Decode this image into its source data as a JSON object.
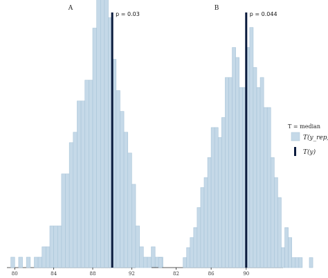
{
  "chart_data": [
    {
      "type": "bar",
      "panel_title": "A",
      "x_axis": {
        "min": 79.2,
        "max": 92.4,
        "ticks": [
          80,
          84,
          88,
          92
        ]
      },
      "y_axis": {
        "max": 24.5,
        "visible": false
      },
      "bin_width": 0.4,
      "bin_start": 79.6,
      "counts": [
        1,
        0,
        1,
        0,
        1,
        0,
        1,
        1,
        2,
        2,
        4,
        4,
        4,
        9,
        9,
        12,
        13,
        16,
        16,
        18,
        18,
        23,
        28,
        28,
        28,
        24,
        20,
        17,
        15,
        13,
        11,
        8,
        4,
        2,
        1,
        1,
        2,
        1,
        1
      ],
      "observed_value": 90.0,
      "p_value_label": "p = 0.03",
      "fill": "#c5d9e8",
      "edge": "#a8c4d8",
      "line_color": "#0a1b3d"
    },
    {
      "type": "bar",
      "panel_title": "B",
      "x_axis": {
        "min": 79.2,
        "max": 94.2,
        "ticks": [
          82,
          86,
          90
        ]
      },
      "y_axis": {
        "max": 25.5,
        "visible": false
      },
      "bin_width": 0.4,
      "bin_start": 80.0,
      "counts": [
        1,
        0,
        0,
        0,
        0,
        0,
        0,
        1,
        2,
        3,
        4,
        6,
        8,
        9,
        11,
        14,
        14,
        13,
        15,
        19,
        19,
        22,
        21,
        18,
        18,
        22,
        24,
        20,
        18,
        19,
        16,
        16,
        11,
        9,
        7,
        2,
        4,
        3,
        1,
        1,
        1,
        0,
        0,
        1
      ],
      "observed_value": 90.0,
      "p_value_label": "p = 0.044",
      "fill": "#c5d9e8",
      "edge": "#a8c4d8",
      "line_color": "#0a1b3d"
    }
  ],
  "legend": {
    "title": "T = median",
    "rep_label": "T(y_rep)",
    "obs_label": "T(y)",
    "rep_color": "#c5d9e8",
    "obs_color": "#0a1b3d"
  }
}
